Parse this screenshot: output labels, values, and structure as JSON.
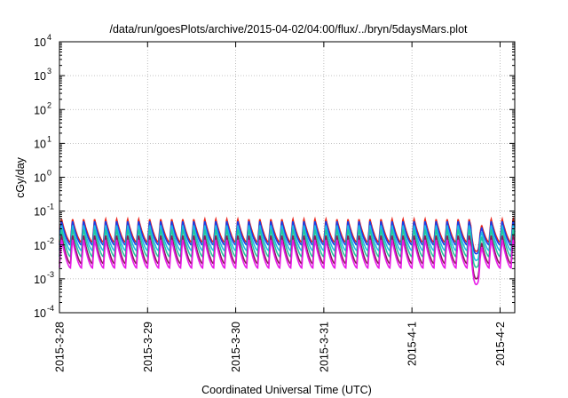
{
  "chart_data": {
    "type": "line",
    "title": "/data/run/goesPlots/archive/2015-04-02/04:00/flux/../bryn/5daysMars.plot",
    "xlabel": "Coordinated Universal Time (UTC)",
    "ylabel": "cGy/day",
    "yscale": "log",
    "ylim": [
      0.0001,
      10000
    ],
    "xlim": [
      "2015-03-28T00:00",
      "2015-04-02T04:00"
    ],
    "grid": true,
    "y_ticks": [
      {
        "base": "10",
        "exp": "-4"
      },
      {
        "base": "10",
        "exp": "-3"
      },
      {
        "base": "10",
        "exp": "-2"
      },
      {
        "base": "10",
        "exp": "-1"
      },
      {
        "base": "10",
        "exp": "0"
      },
      {
        "base": "10",
        "exp": "1"
      },
      {
        "base": "10",
        "exp": "2"
      },
      {
        "base": "10",
        "exp": "3"
      },
      {
        "base": "10",
        "exp": "4"
      }
    ],
    "x_ticks": [
      "2015-3-28",
      "2015-3-29",
      "2015-3-30",
      "2015-3-31",
      "2015-4-1",
      "2015-4-2"
    ],
    "pattern": {
      "cycle_hours": 3,
      "dip_start": "2015-04-01T16:00",
      "dip_end": "2015-04-01T19:00"
    },
    "series": [
      {
        "color": "#e8221a",
        "peak": 0.06,
        "trough": 0.012,
        "dip_min": 0.0065
      },
      {
        "color": "#1a3ce8",
        "peak": 0.052,
        "trough": 0.01,
        "dip_min": 0.0055
      },
      {
        "color": "#1fb8e8",
        "peak": 0.04,
        "trough": 0.0068,
        "dip_min": 0.0035
      },
      {
        "color": "#22c8a0",
        "peak": 0.03,
        "trough": 0.0045,
        "dip_min": 0.0022
      },
      {
        "color": "#8a1a5a",
        "peak": 0.02,
        "trough": 0.0028,
        "dip_min": 0.001
      },
      {
        "color": "#e81ae8",
        "peak": 0.015,
        "trough": 0.0021,
        "dip_min": 0.00068
      }
    ]
  }
}
